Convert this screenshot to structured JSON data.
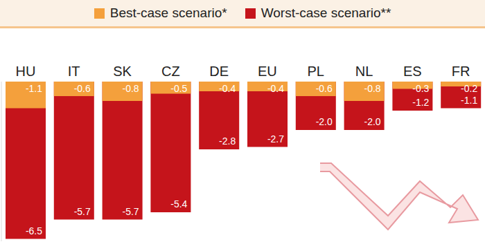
{
  "chart_data": {
    "type": "bar",
    "categories": [
      "HU",
      "IT",
      "SK",
      "CZ",
      "DE",
      "EU",
      "PL",
      "NL",
      "ES",
      "FR"
    ],
    "series": [
      {
        "name": "Best-case scenario*",
        "color": "#f4a03c",
        "values": [
          -1.1,
          -0.6,
          -0.8,
          -0.5,
          -0.4,
          -0.4,
          -0.6,
          -0.8,
          -0.3,
          -0.2
        ],
        "value_labels": [
          "-1.1",
          "-0.6",
          "-0.8",
          "-0.5",
          "-0.4",
          "-0.4",
          "-0.6",
          "-0.8",
          "-0.3",
          "-0.2"
        ]
      },
      {
        "name": "Worst-case scenario**",
        "color": "#c5141b",
        "values": [
          -6.5,
          -5.7,
          -5.7,
          -5.4,
          -2.8,
          -2.7,
          -2.0,
          -2.0,
          -1.2,
          -1.1
        ],
        "value_labels": [
          "-6.5",
          "-5.7",
          "-5.7",
          "-5.4",
          "-2.8",
          "-2.7",
          "-2.0",
          "-2.0",
          "-1.2",
          "-1.1"
        ]
      }
    ],
    "ylim": [
      -6.6,
      0
    ],
    "yticks": [
      0
    ],
    "data_labels": true,
    "tick_labels": "x",
    "legend": "top"
  }
}
